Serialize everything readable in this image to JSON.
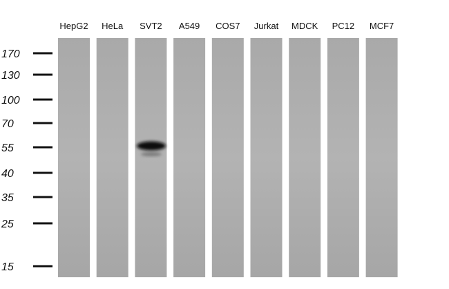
{
  "lanes": [
    "HepG2",
    "HeLa",
    "SVT2",
    "A549",
    "COS7",
    "Jurkat",
    "MDCK",
    "PC12",
    "MCF7"
  ],
  "markers": [
    "170",
    "130",
    "100",
    "70",
    "55",
    "40",
    "35",
    "25",
    "15"
  ]
}
